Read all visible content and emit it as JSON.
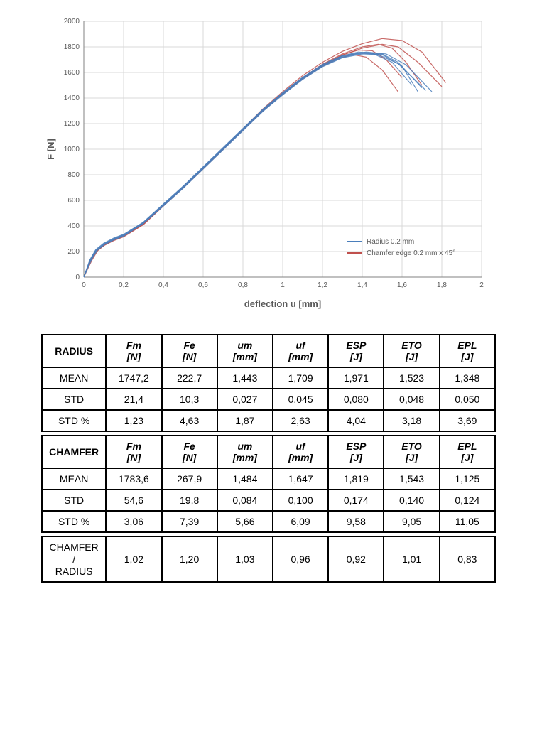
{
  "chart": {
    "type": "line",
    "xlabel": "deflection u [mm]",
    "ylabel": "F [N]",
    "xlim": [
      0,
      2
    ],
    "ylim": [
      0,
      2000
    ],
    "xticks": [
      0,
      0.2,
      0.4,
      0.6,
      0.8,
      1,
      1.2,
      1.4,
      1.6,
      1.8,
      2
    ],
    "xtick_labels": [
      "0",
      "0,2",
      "0,4",
      "0,6",
      "0,8",
      "1",
      "1,2",
      "1,4",
      "1,6",
      "1,8",
      "2"
    ],
    "yticks": [
      0,
      200,
      400,
      600,
      800,
      1000,
      1200,
      1400,
      1600,
      1800,
      2000
    ],
    "ytick_labels": [
      "0",
      "200",
      "400",
      "600",
      "800",
      "1000",
      "1200",
      "1400",
      "1600",
      "1800",
      "2000"
    ],
    "grid_color": "#d9d9d9",
    "axis_color": "#808080",
    "background_color": "#ffffff",
    "label_fontsize": 13,
    "tick_fontsize": 10,
    "legend": {
      "items": [
        {
          "label": "Radius 0.2 mm",
          "color": "#4a7ebb"
        },
        {
          "label": "Chamfer edge 0.2 mm x 45°",
          "color": "#c0504d"
        }
      ],
      "position": "bottom-right"
    },
    "series_radius": {
      "color": "#4a7ebb",
      "line_width": 1.2,
      "curves": [
        [
          [
            0,
            0
          ],
          [
            0.03,
            120
          ],
          [
            0.06,
            200
          ],
          [
            0.1,
            250
          ],
          [
            0.15,
            290
          ],
          [
            0.2,
            320
          ],
          [
            0.3,
            420
          ],
          [
            0.4,
            560
          ],
          [
            0.5,
            700
          ],
          [
            0.6,
            850
          ],
          [
            0.7,
            1000
          ],
          [
            0.8,
            1150
          ],
          [
            0.9,
            1300
          ],
          [
            1.0,
            1430
          ],
          [
            1.1,
            1550
          ],
          [
            1.2,
            1650
          ],
          [
            1.3,
            1720
          ],
          [
            1.4,
            1750
          ],
          [
            1.5,
            1740
          ],
          [
            1.6,
            1650
          ],
          [
            1.68,
            1450
          ]
        ],
        [
          [
            0,
            0
          ],
          [
            0.03,
            130
          ],
          [
            0.06,
            210
          ],
          [
            0.1,
            260
          ],
          [
            0.15,
            300
          ],
          [
            0.2,
            330
          ],
          [
            0.3,
            430
          ],
          [
            0.4,
            570
          ],
          [
            0.5,
            710
          ],
          [
            0.6,
            860
          ],
          [
            0.7,
            1010
          ],
          [
            0.8,
            1160
          ],
          [
            0.9,
            1310
          ],
          [
            1.0,
            1440
          ],
          [
            1.1,
            1560
          ],
          [
            1.2,
            1660
          ],
          [
            1.3,
            1730
          ],
          [
            1.38,
            1760
          ],
          [
            1.45,
            1750
          ],
          [
            1.55,
            1680
          ],
          [
            1.65,
            1500
          ]
        ],
        [
          [
            0,
            0
          ],
          [
            0.04,
            140
          ],
          [
            0.07,
            215
          ],
          [
            0.11,
            265
          ],
          [
            0.16,
            305
          ],
          [
            0.21,
            335
          ],
          [
            0.3,
            425
          ],
          [
            0.4,
            565
          ],
          [
            0.5,
            705
          ],
          [
            0.6,
            855
          ],
          [
            0.7,
            1005
          ],
          [
            0.8,
            1155
          ],
          [
            0.9,
            1305
          ],
          [
            1.0,
            1435
          ],
          [
            1.1,
            1555
          ],
          [
            1.2,
            1655
          ],
          [
            1.3,
            1725
          ],
          [
            1.4,
            1755
          ],
          [
            1.5,
            1745
          ],
          [
            1.58,
            1680
          ],
          [
            1.7,
            1480
          ]
        ],
        [
          [
            0,
            0
          ],
          [
            0.03,
            125
          ],
          [
            0.06,
            205
          ],
          [
            0.1,
            255
          ],
          [
            0.15,
            295
          ],
          [
            0.2,
            325
          ],
          [
            0.3,
            420
          ],
          [
            0.4,
            555
          ],
          [
            0.5,
            695
          ],
          [
            0.6,
            845
          ],
          [
            0.7,
            995
          ],
          [
            0.8,
            1145
          ],
          [
            0.9,
            1295
          ],
          [
            1.0,
            1425
          ],
          [
            1.1,
            1545
          ],
          [
            1.2,
            1645
          ],
          [
            1.3,
            1715
          ],
          [
            1.4,
            1745
          ],
          [
            1.48,
            1740
          ],
          [
            1.58,
            1670
          ],
          [
            1.72,
            1460
          ]
        ],
        [
          [
            0,
            0
          ],
          [
            0.03,
            135
          ],
          [
            0.06,
            215
          ],
          [
            0.1,
            265
          ],
          [
            0.15,
            305
          ],
          [
            0.2,
            335
          ],
          [
            0.3,
            430
          ],
          [
            0.4,
            572
          ],
          [
            0.5,
            712
          ],
          [
            0.6,
            862
          ],
          [
            0.7,
            1012
          ],
          [
            0.8,
            1162
          ],
          [
            0.9,
            1312
          ],
          [
            1.0,
            1442
          ],
          [
            1.1,
            1562
          ],
          [
            1.2,
            1662
          ],
          [
            1.3,
            1732
          ],
          [
            1.42,
            1760
          ],
          [
            1.52,
            1745
          ],
          [
            1.62,
            1660
          ],
          [
            1.75,
            1450
          ]
        ]
      ]
    },
    "series_chamfer": {
      "color": "#c0504d",
      "line_width": 1.2,
      "curves": [
        [
          [
            0,
            0
          ],
          [
            0.03,
            110
          ],
          [
            0.06,
            195
          ],
          [
            0.1,
            245
          ],
          [
            0.15,
            285
          ],
          [
            0.2,
            315
          ],
          [
            0.3,
            410
          ],
          [
            0.4,
            555
          ],
          [
            0.5,
            700
          ],
          [
            0.6,
            850
          ],
          [
            0.7,
            1005
          ],
          [
            0.8,
            1160
          ],
          [
            0.9,
            1315
          ],
          [
            1.0,
            1450
          ],
          [
            1.1,
            1575
          ],
          [
            1.2,
            1680
          ],
          [
            1.3,
            1765
          ],
          [
            1.4,
            1825
          ],
          [
            1.5,
            1865
          ],
          [
            1.6,
            1850
          ],
          [
            1.7,
            1760
          ],
          [
            1.82,
            1520
          ]
        ],
        [
          [
            0,
            0
          ],
          [
            0.03,
            120
          ],
          [
            0.06,
            200
          ],
          [
            0.1,
            250
          ],
          [
            0.15,
            290
          ],
          [
            0.2,
            320
          ],
          [
            0.3,
            415
          ],
          [
            0.4,
            558
          ],
          [
            0.5,
            700
          ],
          [
            0.6,
            848
          ],
          [
            0.7,
            1000
          ],
          [
            0.8,
            1152
          ],
          [
            0.9,
            1305
          ],
          [
            1.0,
            1438
          ],
          [
            1.1,
            1560
          ],
          [
            1.2,
            1665
          ],
          [
            1.3,
            1745
          ],
          [
            1.4,
            1800
          ],
          [
            1.48,
            1820
          ],
          [
            1.55,
            1790
          ],
          [
            1.62,
            1680
          ],
          [
            1.7,
            1500
          ]
        ],
        [
          [
            0,
            0
          ],
          [
            0.04,
            130
          ],
          [
            0.07,
            208
          ],
          [
            0.11,
            258
          ],
          [
            0.16,
            298
          ],
          [
            0.21,
            330
          ],
          [
            0.3,
            420
          ],
          [
            0.4,
            560
          ],
          [
            0.5,
            700
          ],
          [
            0.6,
            848
          ],
          [
            0.7,
            998
          ],
          [
            0.8,
            1148
          ],
          [
            0.9,
            1298
          ],
          [
            1.0,
            1428
          ],
          [
            1.1,
            1548
          ],
          [
            1.2,
            1648
          ],
          [
            1.28,
            1710
          ],
          [
            1.35,
            1740
          ],
          [
            1.42,
            1720
          ],
          [
            1.5,
            1620
          ],
          [
            1.58,
            1450
          ]
        ],
        [
          [
            0,
            0
          ],
          [
            0.03,
            115
          ],
          [
            0.06,
            198
          ],
          [
            0.1,
            248
          ],
          [
            0.15,
            288
          ],
          [
            0.2,
            318
          ],
          [
            0.3,
            413
          ],
          [
            0.4,
            556
          ],
          [
            0.5,
            698
          ],
          [
            0.6,
            846
          ],
          [
            0.7,
            998
          ],
          [
            0.8,
            1150
          ],
          [
            0.9,
            1302
          ],
          [
            1.0,
            1435
          ],
          [
            1.1,
            1555
          ],
          [
            1.2,
            1655
          ],
          [
            1.3,
            1735
          ],
          [
            1.4,
            1790
          ],
          [
            1.5,
            1820
          ],
          [
            1.58,
            1800
          ],
          [
            1.68,
            1680
          ],
          [
            1.8,
            1490
          ]
        ],
        [
          [
            0,
            0
          ],
          [
            0.03,
            118
          ],
          [
            0.06,
            199
          ],
          [
            0.1,
            249
          ],
          [
            0.15,
            289
          ],
          [
            0.2,
            319
          ],
          [
            0.3,
            414
          ],
          [
            0.4,
            557
          ],
          [
            0.5,
            699
          ],
          [
            0.6,
            847
          ],
          [
            0.7,
            999
          ],
          [
            0.8,
            1151
          ],
          [
            0.9,
            1303
          ],
          [
            1.0,
            1436
          ],
          [
            1.1,
            1557
          ],
          [
            1.2,
            1658
          ],
          [
            1.3,
            1738
          ],
          [
            1.38,
            1775
          ],
          [
            1.45,
            1770
          ],
          [
            1.52,
            1700
          ],
          [
            1.6,
            1560
          ]
        ]
      ]
    }
  },
  "table_radius": {
    "header_label": "RADIUS",
    "columns": [
      "Fm [N]",
      "Fe [N]",
      "um [mm]",
      "uf [mm]",
      "ESP [J]",
      "ETO [J]",
      "EPL [J]"
    ],
    "rows": [
      {
        "label": "MEAN",
        "values": [
          "1747,2",
          "222,7",
          "1,443",
          "1,709",
          "1,971",
          "1,523",
          "1,348"
        ]
      },
      {
        "label": "STD",
        "values": [
          "21,4",
          "10,3",
          "0,027",
          "0,045",
          "0,080",
          "0,048",
          "0,050"
        ]
      },
      {
        "label": "STD %",
        "values": [
          "1,23",
          "4,63",
          "1,87",
          "2,63",
          "4,04",
          "3,18",
          "3,69"
        ]
      }
    ]
  },
  "table_chamfer": {
    "header_label": "CHAMFER",
    "columns": [
      "Fm [N]",
      "Fe [N]",
      "um [mm]",
      "uf [mm]",
      "ESP [J]",
      "ETO [J]",
      "EPL [J]"
    ],
    "rows": [
      {
        "label": "MEAN",
        "values": [
          "1783,6",
          "267,9",
          "1,484",
          "1,647",
          "1,819",
          "1,543",
          "1,125"
        ]
      },
      {
        "label": "STD",
        "values": [
          "54,6",
          "19,8",
          "0,084",
          "0,100",
          "0,174",
          "0,140",
          "0,124"
        ]
      },
      {
        "label": "STD %",
        "values": [
          "3,06",
          "7,39",
          "5,66",
          "6,09",
          "9,58",
          "9,05",
          "11,05"
        ]
      }
    ]
  },
  "table_ratio": {
    "header_label": "CHAMFER / RADIUS",
    "values": [
      "1,02",
      "1,20",
      "1,03",
      "0,96",
      "0,92",
      "1,01",
      "0,83"
    ]
  },
  "col_widths": [
    "90px",
    "78px",
    "78px",
    "78px",
    "78px",
    "78px",
    "78px",
    "78px"
  ]
}
